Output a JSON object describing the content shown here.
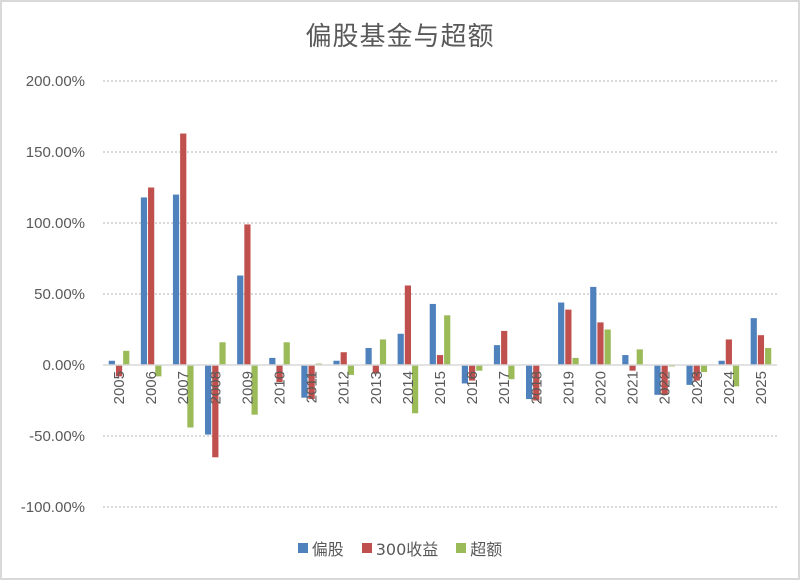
{
  "chart_data": {
    "type": "bar",
    "title": "偏股基金与超额",
    "xlabel": "",
    "ylabel": "",
    "ylim": [
      -100,
      200
    ],
    "yticks": [
      200,
      150,
      100,
      50,
      0,
      -50,
      -100
    ],
    "ytick_labels": [
      "200.00%",
      "150.00%",
      "100.00%",
      "50.00%",
      "0.00%",
      "-50.00%",
      "-100.00%"
    ],
    "grid": true,
    "legend_position": "bottom",
    "categories": [
      "2005",
      "2006",
      "2007",
      "2008",
      "2009",
      "2010",
      "2011",
      "2012",
      "2013",
      "2014",
      "2015",
      "2016",
      "2017",
      "2018",
      "2019",
      "2020",
      "2021",
      "2022",
      "2023",
      "2024",
      "2025"
    ],
    "series": [
      {
        "name": "偏股",
        "color": "#4f81bd",
        "values": [
          3,
          118,
          120,
          -49,
          63,
          5,
          -23,
          3,
          12,
          22,
          43,
          -13,
          14,
          -24,
          44,
          55,
          7,
          -21,
          -14,
          3,
          33
        ]
      },
      {
        "name": "300收益",
        "color": "#c0504d",
        "values": [
          -8,
          125,
          163,
          -65,
          99,
          -12,
          -24,
          9,
          -6,
          56,
          7,
          -11,
          24,
          -25,
          39,
          30,
          -4,
          -21,
          -11,
          18,
          21
        ]
      },
      {
        "name": "超额",
        "color": "#9bbb59",
        "values": [
          10,
          -8,
          -44,
          16,
          -35,
          16,
          1,
          -7,
          18,
          -34,
          35,
          -4,
          -10,
          0,
          5,
          25,
          11,
          -1,
          -5,
          -15,
          12
        ]
      }
    ],
    "unit": "%"
  },
  "legend": {
    "items": [
      {
        "label": "偏股",
        "color": "#4f81bd"
      },
      {
        "label": "300收益",
        "color": "#c0504d"
      },
      {
        "label": "超额",
        "color": "#9bbb59"
      }
    ]
  }
}
